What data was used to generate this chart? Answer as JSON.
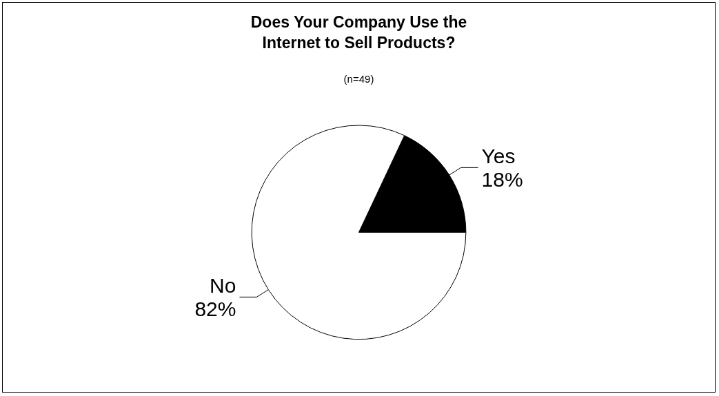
{
  "chart_data": {
    "type": "pie",
    "title": "Does Your Company Use the\nInternet to Sell Products?",
    "subtitle": "(n=49)",
    "categories": [
      "Yes",
      "No"
    ],
    "values": [
      18,
      82
    ],
    "colors": [
      "#000000",
      "#ffffff"
    ],
    "value_labels": [
      "18%",
      "82%"
    ],
    "legend": false
  }
}
